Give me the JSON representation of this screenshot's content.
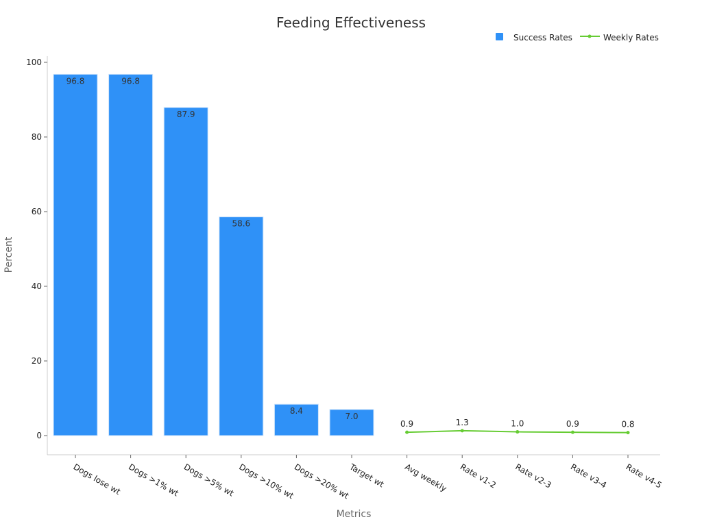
{
  "chart_data": {
    "type": "bar",
    "title": "Feeding Effectiveness",
    "xlabel": "Metrics",
    "ylabel": "Percent",
    "categories": [
      "Dogs lose wt",
      "Dogs >1% wt",
      "Dogs >5% wt",
      "Dogs >10% wt",
      "Dogs >20% wt",
      "Target wt",
      "Avg weekly",
      "Rate v1-2",
      "Rate v2-3",
      "Rate v3-4",
      "Rate v4-5"
    ],
    "ylim": [
      -5,
      102
    ],
    "yticks": [
      0,
      20,
      40,
      60,
      80,
      100
    ],
    "grid": false,
    "legend_position": "top-right",
    "series": [
      {
        "name": "Success Rates",
        "type": "bar",
        "color": "#2f91f7",
        "values": [
          96.8,
          96.8,
          87.9,
          58.6,
          8.4,
          7.0,
          null,
          null,
          null,
          null,
          null
        ],
        "labels": [
          "96.8",
          "96.8",
          "87.9",
          "58.6",
          "8.4",
          "7.0",
          null,
          null,
          null,
          null,
          null
        ]
      },
      {
        "name": "Weekly Rates",
        "type": "line",
        "color": "#66cc33",
        "values": [
          null,
          null,
          null,
          null,
          null,
          null,
          0.9,
          1.3,
          1.0,
          0.9,
          0.8
        ],
        "labels": [
          null,
          null,
          null,
          null,
          null,
          null,
          "0.9",
          "1.3",
          "1.0",
          "0.9",
          "0.8"
        ]
      }
    ]
  }
}
